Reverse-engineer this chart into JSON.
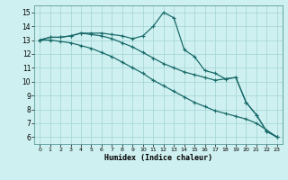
{
  "xlabel": "Humidex (Indice chaleur)",
  "xlim": [
    -0.5,
    23.5
  ],
  "ylim": [
    5.5,
    15.5
  ],
  "xticks": [
    0,
    1,
    2,
    3,
    4,
    5,
    6,
    7,
    8,
    9,
    10,
    11,
    12,
    13,
    14,
    15,
    16,
    17,
    18,
    19,
    20,
    21,
    22,
    23
  ],
  "yticks": [
    6,
    7,
    8,
    9,
    10,
    11,
    12,
    13,
    14,
    15
  ],
  "bg_color": "#cff0f0",
  "grid_color": "#a8d8d8",
  "line_color": "#1a6b6b",
  "line1_x": [
    0,
    1,
    2,
    3,
    4,
    5,
    6,
    7,
    8,
    9,
    10,
    11,
    12,
    13,
    14,
    15,
    16,
    17,
    18,
    19,
    20,
    21,
    22,
    23
  ],
  "line1_y": [
    13.0,
    13.2,
    13.2,
    13.3,
    13.5,
    13.5,
    13.5,
    13.4,
    13.3,
    13.1,
    13.3,
    14.0,
    15.0,
    14.6,
    12.3,
    11.8,
    10.8,
    10.6,
    10.2,
    10.3,
    8.5,
    7.6,
    6.4,
    6.0
  ],
  "line2_x": [
    0,
    1,
    2,
    3,
    4,
    5,
    6,
    7,
    8,
    9,
    10,
    11,
    12,
    13,
    14,
    15,
    16,
    17,
    18,
    19,
    20,
    21,
    22,
    23
  ],
  "line2_y": [
    13.0,
    13.2,
    13.2,
    13.3,
    13.5,
    13.4,
    13.3,
    13.1,
    12.8,
    12.5,
    12.1,
    11.7,
    11.3,
    11.0,
    10.7,
    10.5,
    10.3,
    10.1,
    10.2,
    10.3,
    8.5,
    7.6,
    6.4,
    6.0
  ],
  "line3_x": [
    0,
    1,
    2,
    3,
    4,
    5,
    6,
    7,
    8,
    9,
    10,
    11,
    12,
    13,
    14,
    15,
    16,
    17,
    18,
    19,
    20,
    21,
    22,
    23
  ],
  "line3_y": [
    13.0,
    13.0,
    12.9,
    12.8,
    12.6,
    12.4,
    12.1,
    11.8,
    11.4,
    11.0,
    10.6,
    10.1,
    9.7,
    9.3,
    8.9,
    8.5,
    8.2,
    7.9,
    7.7,
    7.5,
    7.3,
    7.0,
    6.5,
    6.0
  ]
}
